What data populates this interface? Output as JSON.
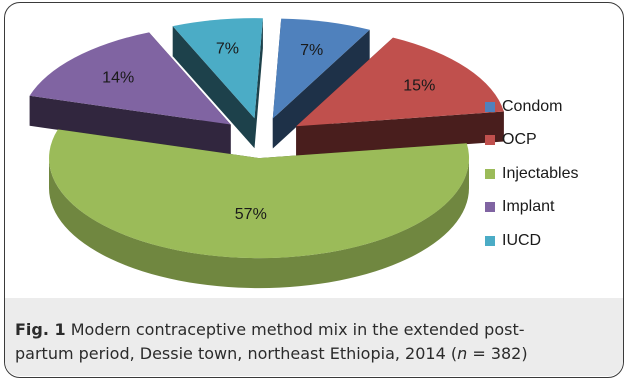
{
  "chart_data": {
    "type": "pie",
    "style": "3d-exploded",
    "categories": [
      "Condom",
      "OCP",
      "Injectables",
      "Implant",
      "IUCD"
    ],
    "values": [
      7,
      15,
      57,
      14,
      7
    ],
    "labels": [
      "7%",
      "15%",
      "57%",
      "14%",
      "7%"
    ],
    "colors": [
      "#4f81bd",
      "#c0504d",
      "#9bbb59",
      "#8064a2",
      "#4bacc6"
    ],
    "legend_position": "right"
  },
  "caption": {
    "fig_label": "Fig. 1",
    "text_line1": "Modern contraceptive method mix in the extended post-",
    "text_line2": "partum period, Dessie town, northeast Ethiopia, 2014 (",
    "n_var": "n",
    "n_rest": " = 382)"
  }
}
